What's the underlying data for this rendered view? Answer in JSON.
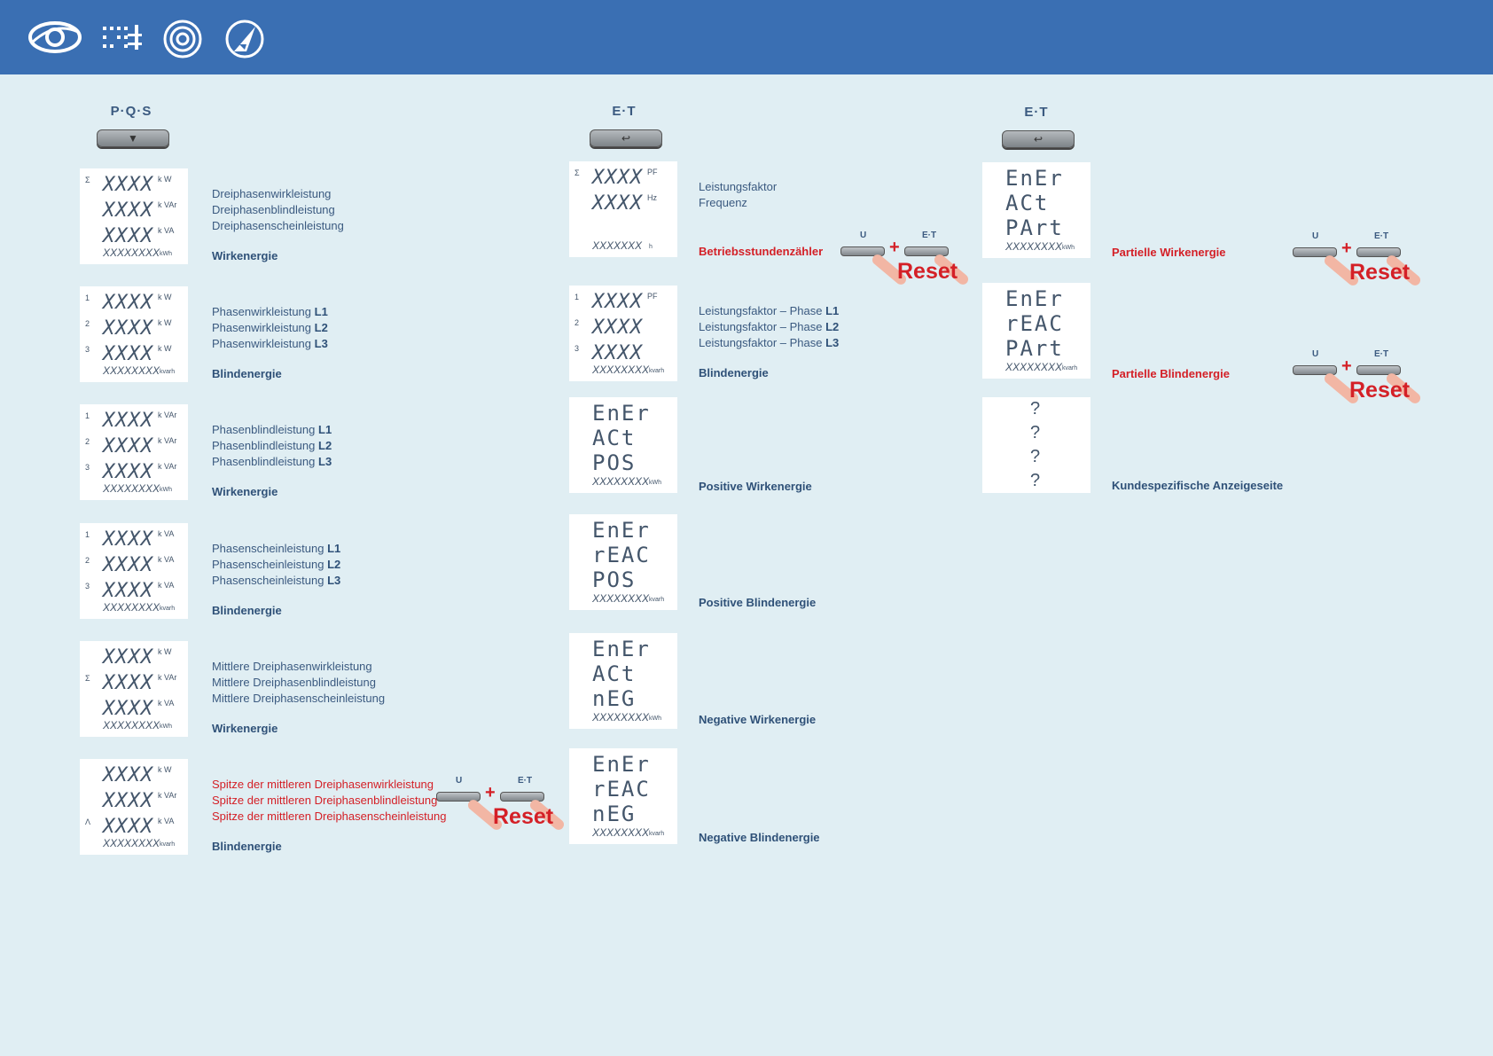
{
  "header_icons": [
    "eye-icon",
    "meter-grid-icon",
    "target-icon",
    "triangle-ruler-icon"
  ],
  "columns": {
    "col1": {
      "header": "P·Q·S",
      "button": "▼"
    },
    "col2": {
      "header": "E·T",
      "button": "↩"
    },
    "col3": {
      "header": "E·T",
      "button": "↩"
    }
  },
  "col1_rows": [
    {
      "lines": [
        "Dreiphasenwirkleistung",
        "Dreiphasenblindleistung",
        "Dreiphasenscheinleistung"
      ],
      "energy": "Wirkenergie",
      "bottom_unit": "kWh",
      "display": [
        {
          "pre": "Σ",
          "val": "XXXX",
          "unit": "k W"
        },
        {
          "pre": "",
          "val": "XXXX",
          "unit": "k VAr"
        },
        {
          "pre": "",
          "val": "XXXX",
          "unit": "k VA"
        }
      ]
    },
    {
      "lines": [
        "Phasenwirkleistung",
        "Phasenwirkleistung",
        "Phasenwirkleistung"
      ],
      "phases": [
        "L1",
        "L2",
        "L3"
      ],
      "energy": "Blindenergie",
      "bottom_unit": "kvarh",
      "display": [
        {
          "pre": "1",
          "val": "XXXX",
          "unit": "k W"
        },
        {
          "pre": "2",
          "val": "XXXX",
          "unit": "k W"
        },
        {
          "pre": "3",
          "val": "XXXX",
          "unit": "k W"
        }
      ]
    },
    {
      "lines": [
        "Phasenblindleistung",
        "Phasenblindleistung",
        "Phasenblindleistung"
      ],
      "phases": [
        "L1",
        "L2",
        "L3"
      ],
      "energy": "Wirkenergie",
      "bottom_unit": "kWh",
      "display": [
        {
          "pre": "1",
          "val": "XXXX",
          "unit": "k VAr"
        },
        {
          "pre": "2",
          "val": "XXXX",
          "unit": "k VAr"
        },
        {
          "pre": "3",
          "val": "XXXX",
          "unit": "k VAr"
        }
      ]
    },
    {
      "lines": [
        "Phasenscheinleistung",
        "Phasenscheinleistung",
        "Phasenscheinleistung"
      ],
      "phases": [
        "L1",
        "L2",
        "L3"
      ],
      "energy": "Blindenergie",
      "bottom_unit": "kvarh",
      "display": [
        {
          "pre": "1",
          "val": "XXXX",
          "unit": "k VA"
        },
        {
          "pre": "2",
          "val": "XXXX",
          "unit": "k VA"
        },
        {
          "pre": "3",
          "val": "XXXX",
          "unit": "k VA"
        }
      ]
    },
    {
      "lines": [
        "Mittlere Dreiphasenwirkleistung",
        "Mittlere Dreiphasenblindleistung",
        "Mittlere Dreiphasenscheinleistung"
      ],
      "energy": "Wirkenergie",
      "bottom_unit": "kWh",
      "display": [
        {
          "pre": "",
          "val": "XXXX",
          "unit": "k W"
        },
        {
          "pre": "Σ",
          "val": "XXXX",
          "unit": "k VAr"
        },
        {
          "pre": "",
          "val": "XXXX",
          "unit": "k VA"
        }
      ]
    },
    {
      "lines": [
        "Spitze der mittleren Dreiphasenwirkleistung",
        "Spitze der mittleren Dreiphasenblindleistung",
        "Spitze der mittleren Dreiphasenscheinleistung"
      ],
      "energy": "Blindenergie",
      "bottom_unit": "kvarh",
      "display": [
        {
          "pre": "",
          "val": "XXXX",
          "unit": "k W"
        },
        {
          "pre": "",
          "val": "XXXX",
          "unit": "k VAr"
        },
        {
          "pre": "Λ",
          "val": "XXXX",
          "unit": "k VA"
        }
      ]
    }
  ],
  "bottom_value": "XXXXXXXX",
  "col2_rows": [
    {
      "lines": [
        "Leistungsfaktor",
        "Frequenz"
      ],
      "energy": "Betriebsstundenzähler",
      "bottom_unit": "h",
      "display": [
        {
          "pre": "Σ",
          "val": "XXXX",
          "unit": "PF"
        },
        {
          "pre": "",
          "val": "XXXX",
          "unit": "Hz"
        }
      ],
      "bottom_val": "XXXXXXX"
    },
    {
      "lines": [
        "Leistungsfaktor – Phase",
        "Leistungsfaktor – Phase",
        "Leistungsfaktor – Phase"
      ],
      "phases": [
        "L1",
        "L2",
        "L3"
      ],
      "energy": "Blindenergie",
      "bottom_unit": "kvarh",
      "display": [
        {
          "pre": "1",
          "val": "XXXX",
          "unit": "PF"
        },
        {
          "pre": "2",
          "val": "XXXX",
          "unit": ""
        },
        {
          "pre": "3",
          "val": "XXXX",
          "unit": ""
        }
      ],
      "bottom_val": "XXXXXXXX"
    },
    {
      "seg": [
        "EnEr",
        "ACt",
        "POS"
      ],
      "energy": "Positive Wirkenergie",
      "bottom_unit": "kWh",
      "bottom_val": "XXXXXXXX"
    },
    {
      "seg": [
        "EnEr",
        "rEAC",
        "POS"
      ],
      "energy": "Positive Blindenergie",
      "bottom_unit": "kvarh",
      "bottom_val": "XXXXXXXX"
    },
    {
      "seg": [
        "EnEr",
        "ACt",
        "nEG"
      ],
      "energy": "Negative Wirkenergie",
      "bottom_unit": "kWh",
      "bottom_val": "XXXXXXXX"
    },
    {
      "seg": [
        "EnEr",
        "rEAC",
        "nEG"
      ],
      "energy": "Negative Blindenergie",
      "bottom_unit": "kvarh",
      "bottom_val": "XXXXXXXX"
    }
  ],
  "col3_rows": [
    {
      "seg": [
        "EnEr",
        "ACt",
        "PArt"
      ],
      "energy": "Partielle Wirkenergie",
      "bottom_unit": "kWh",
      "bottom_val": "XXXXXXXX"
    },
    {
      "seg": [
        "EnEr",
        "rEAC",
        "PArt"
      ],
      "energy": "Partielle Blindenergie",
      "bottom_unit": "kvarh",
      "bottom_val": "XXXXXXXX"
    },
    {
      "q": [
        "?",
        "?",
        "?",
        "?"
      ],
      "energy": "Kundespezifische Anzeigeseite"
    }
  ],
  "reset": {
    "u_label": "U",
    "et_label": "E·T",
    "plus": "+",
    "text": "Reset"
  }
}
